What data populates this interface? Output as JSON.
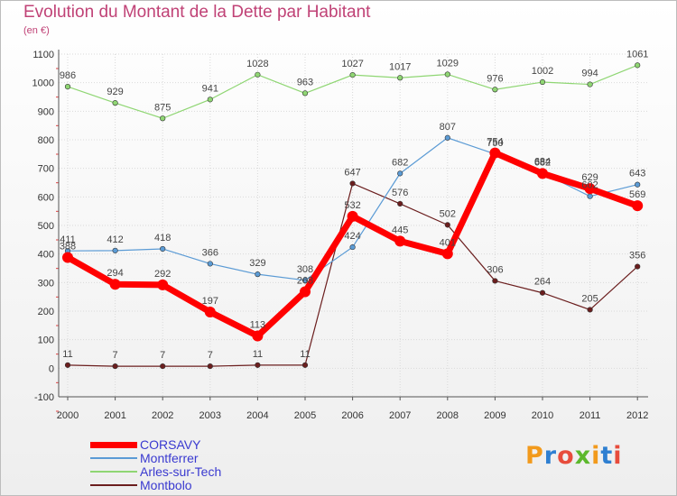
{
  "title": "Evolution du Montant de la Dette par Habitant",
  "subtitle": "(en €)",
  "logo": {
    "text": "Proxiti",
    "colors": [
      "#f29a1c",
      "#2e7fd1",
      "#e74c3c",
      "#5cb82c",
      "#f29a1c",
      "#2e7fd1",
      "#e74c3c"
    ]
  },
  "chart_data": {
    "type": "line",
    "x": [
      "2000",
      "2001",
      "2002",
      "2003",
      "2004",
      "2005",
      "2006",
      "2007",
      "2008",
      "2009",
      "2010",
      "2011",
      "2012"
    ],
    "ylim": [
      -100,
      1100
    ],
    "yticks": [
      "-100",
      "0",
      "100",
      "200",
      "300",
      "400",
      "500",
      "600",
      "700",
      "800",
      "900",
      "1000",
      "1100"
    ],
    "grid": true,
    "legend_position": "bottom-left",
    "series": [
      {
        "name": "Arles-sur-Tech",
        "color": "#8fd673",
        "width": 1.2,
        "marker": 2.8,
        "values": [
          986,
          929,
          875,
          941,
          1028,
          963,
          1027,
          1017,
          1029,
          976,
          1002,
          994,
          1061
        ],
        "labels": [
          "986",
          "929",
          "875",
          "941",
          "1028",
          "963",
          "1027",
          "1017",
          "1029",
          "976",
          "1002",
          "994",
          "1061"
        ]
      },
      {
        "name": "Montbolo",
        "color": "#6b1e1e",
        "width": 1.2,
        "marker": 2.8,
        "values": [
          11,
          7,
          7,
          7,
          11,
          11,
          647,
          576,
          502,
          306,
          264,
          205,
          356
        ],
        "labels": [
          "11",
          "7",
          "7",
          "7",
          "11",
          "11",
          "647",
          "576",
          "502",
          "306",
          "264",
          "205",
          "356"
        ]
      },
      {
        "name": "Montferrer",
        "color": "#5b9bd5",
        "width": 1.2,
        "marker": 2.8,
        "values": [
          411,
          412,
          418,
          366,
          329,
          308,
          424,
          682,
          807,
          750,
          684,
          602,
          643
        ],
        "labels": [
          "411",
          "412",
          "418",
          "366",
          "329",
          "308",
          "424",
          "682",
          "807",
          "750",
          "684",
          "602",
          "643"
        ]
      },
      {
        "name": "CORSAVY",
        "color": "#ff0000",
        "width": 7,
        "marker": 6,
        "values": [
          388,
          294,
          292,
          197,
          113,
          268,
          532,
          445,
          401,
          754,
          682,
          629,
          569
        ],
        "labels": [
          "388",
          "294",
          "292",
          "197",
          "113",
          "268",
          "532",
          "445",
          "401",
          "754",
          "682",
          "629",
          "569"
        ]
      }
    ]
  },
  "legend": [
    {
      "name": "CORSAVY",
      "color": "#ff0000",
      "width": 7
    },
    {
      "name": "Montferrer",
      "color": "#5b9bd5",
      "width": 1.5
    },
    {
      "name": "Arles-sur-Tech",
      "color": "#8fd673",
      "width": 1.5
    },
    {
      "name": "Montbolo",
      "color": "#6b1e1e",
      "width": 1.5
    }
  ]
}
